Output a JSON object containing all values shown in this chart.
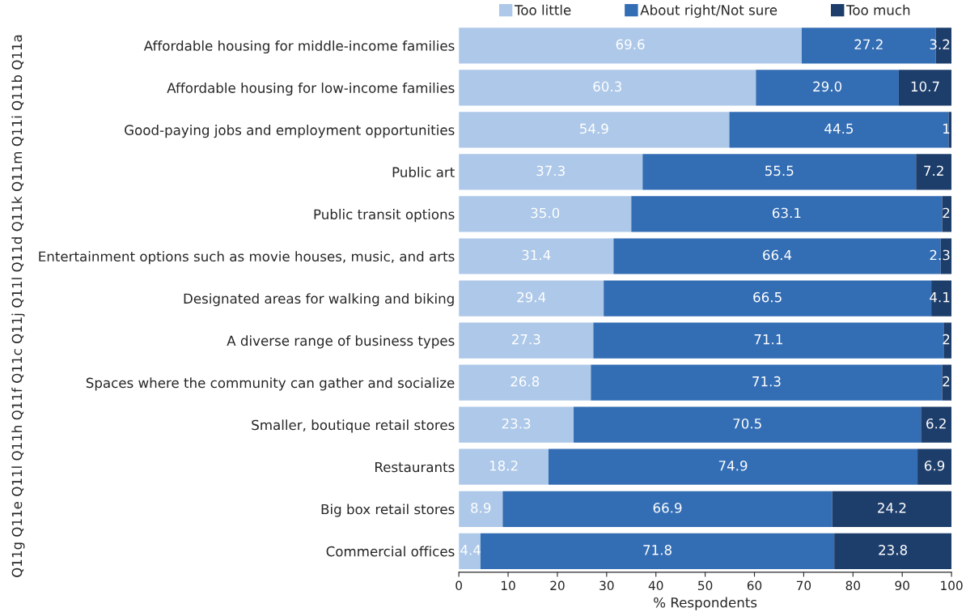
{
  "chart_data": {
    "type": "bar",
    "orientation": "horizontal",
    "stacked": true,
    "categories": [
      "Affordable housing for middle-income families",
      "Affordable housing for low-income families",
      "Good-paying jobs and employment opportunities",
      "Public art",
      "Public transit options",
      "Entertainment options such as movie houses, music, and arts",
      "Designated areas for walking and biking",
      "A diverse range of business types",
      "Spaces where the community can gather and socialize",
      "Smaller, boutique retail stores",
      "Restaurants",
      "Big box retail stores",
      "Commercial offices"
    ],
    "series": [
      {
        "name": "Too little",
        "color": "#adc8e8",
        "values": [
          69.6,
          60.3,
          54.9,
          37.3,
          35.0,
          31.4,
          29.4,
          27.3,
          26.8,
          23.3,
          18.2,
          8.9,
          4.4
        ],
        "value_labels": [
          "69.6",
          "60.3",
          "54.9",
          "37.3",
          "35.0",
          "31.4",
          "29.4",
          "27.3",
          "26.8",
          "23.3",
          "18.2",
          "8.9",
          "4.4"
        ]
      },
      {
        "name": "About right/Not sure",
        "color": "#336db4",
        "values": [
          27.2,
          29.0,
          44.5,
          55.5,
          63.1,
          66.4,
          66.5,
          71.1,
          71.3,
          70.5,
          74.9,
          66.9,
          71.8
        ],
        "value_labels": [
          "27.2",
          "29.0",
          "44.5",
          "55.5",
          "63.1",
          "66.4",
          "66.5",
          "71.1",
          "71.3",
          "70.5",
          "74.9",
          "66.9",
          "71.8"
        ]
      },
      {
        "name": "Too much",
        "color": "#1d3d6b",
        "values": [
          3.2,
          10.7,
          0.6,
          7.2,
          1.9,
          2.3,
          4.1,
          1.6,
          1.9,
          6.2,
          6.9,
          24.2,
          23.8
        ],
        "value_labels": [
          "3.2",
          "10.7",
          "1",
          "7.2",
          "2",
          "2.3",
          "4.1",
          "2",
          "2",
          "6.2",
          "6.9",
          "24.2",
          "23.8"
        ]
      }
    ],
    "xlabel": "% Respondents",
    "ylabel": "Q11g Q11e Q11l Q11h Q11f Q11c Q11j Q11l Q11d Q11k Q11m Q11i Q11b Q11a",
    "xlim": [
      0,
      100
    ],
    "xticks": [
      0,
      10,
      20,
      30,
      40,
      50,
      60,
      70,
      80,
      90,
      100
    ],
    "grid": false,
    "legend": "top"
  }
}
